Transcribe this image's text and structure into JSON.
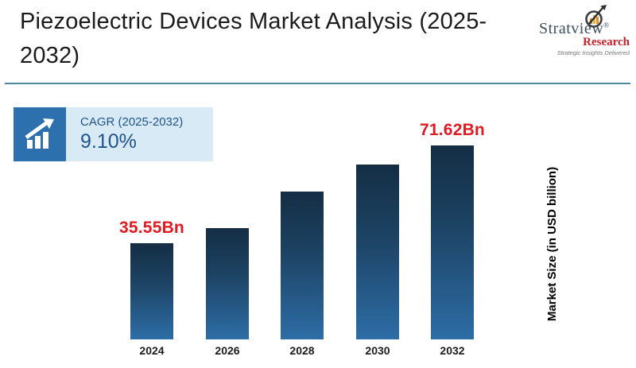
{
  "header": {
    "title": "Piezoelectric Devices Market Analysis (2025-2032)",
    "title_line1": "Piezoelectric Devices Market Analysis (2025-",
    "title_line2": "2032)"
  },
  "logo": {
    "brand": "Stratview",
    "registered": "®",
    "sub_brand": "Research",
    "tagline": "Strategic Insights Delivered"
  },
  "cagr": {
    "label": "CAGR (2025-2032)",
    "value": "9.10%"
  },
  "chart_data": {
    "type": "bar",
    "categories": [
      "2024",
      "2026",
      "2028",
      "2030",
      "2032"
    ],
    "values": [
      35.55,
      41.0,
      54.5,
      64.5,
      71.62
    ],
    "data_labels": [
      "35.55Bn",
      null,
      null,
      null,
      "71.62Bn"
    ],
    "title": "Piezoelectric Devices Market Analysis (2025-2032)",
    "xlabel": "",
    "ylabel": "Market Size (in USD billion)",
    "ylim": [
      0,
      75
    ],
    "grid": false,
    "legend": false,
    "note": "Only 2024 and 2032 bars carry visible data labels; intermediate values estimated from bar heights"
  },
  "colors": {
    "bar_top": "#142e44",
    "bar_mid": "#1d4364",
    "bar_bottom": "#2d6da6",
    "data_label": "#e11b22",
    "accent_rule": "#4e87a0",
    "cagr_box_bg": "#d9eaf7",
    "cagr_icon_bg": "#2d70ae",
    "cagr_text": "#1f538a",
    "logo_brand": "#3e4d59",
    "logo_red": "#cf2028"
  }
}
